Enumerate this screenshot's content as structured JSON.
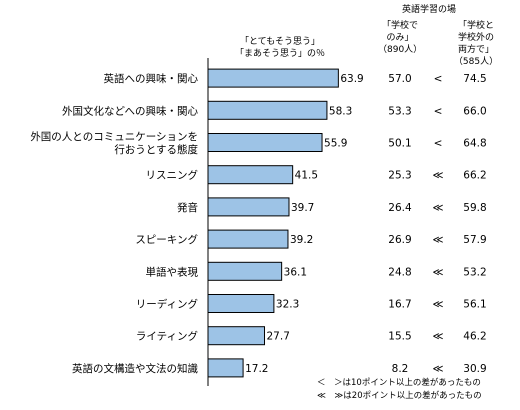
{
  "chart_data": {
    "type": "bar",
    "orientation": "horizontal",
    "series_label": [
      "「とてもそう思う」",
      "「まあそう思う」の％"
    ],
    "categories": [
      [
        "英語への興味・関心"
      ],
      [
        "外国文化などへの興味・関心"
      ],
      [
        "外国の人とのコミュニケーションを",
        "行おうとする態度"
      ],
      [
        "リスニング"
      ],
      [
        "発音"
      ],
      [
        "スピーキング"
      ],
      [
        "単語や表現"
      ],
      [
        "リーディング"
      ],
      [
        "ライティング"
      ],
      [
        "英語の文構造や文法の知識"
      ]
    ],
    "values": [
      63.9,
      58.3,
      55.9,
      41.5,
      39.7,
      39.2,
      36.1,
      32.3,
      27.7,
      17.2
    ],
    "value_labels": [
      "63.9",
      "58.3",
      "55.9",
      "41.5",
      "39.7",
      "39.2",
      "36.1",
      "32.3",
      "27.7",
      "17.2"
    ],
    "bar_color": "#9dc3e6",
    "bar_border": "#000000",
    "xlim": [
      0,
      100
    ],
    "comparison": {
      "title": "英語学習の場",
      "school_only": {
        "header": [
          "「学校で",
          "のみ」",
          "（890人）"
        ],
        "values": [
          "57.0",
          "53.3",
          "50.1",
          "25.3",
          "26.4",
          "26.9",
          "24.8",
          "16.7",
          "15.5",
          "8.2"
        ]
      },
      "school_and_outside": {
        "header": [
          "「学校と",
          "学校外の",
          "両方で」",
          "（585人）"
        ],
        "values": [
          "74.5",
          "66.0",
          "64.8",
          "66.2",
          "59.8",
          "57.9",
          "53.2",
          "56.1",
          "46.2",
          "30.9"
        ]
      },
      "markers": [
        "<",
        "<",
        "<",
        "≪",
        "≪",
        "≪",
        "≪",
        "≪",
        "≪",
        "≪"
      ]
    },
    "notes": [
      "＜　＞は10ポイント以上の差があったもの",
      "≪　≫は20ポイント以上の差があったもの"
    ]
  }
}
